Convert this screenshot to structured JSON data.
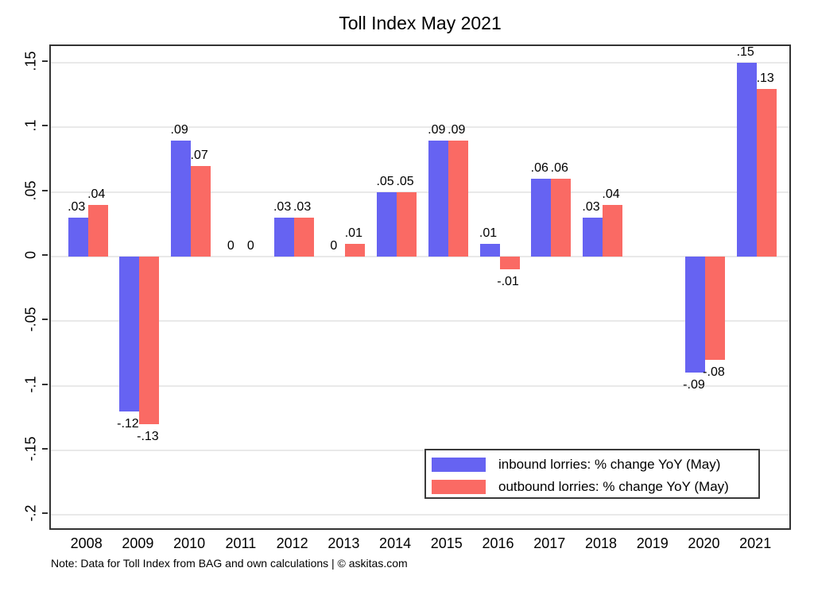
{
  "title": "Toll Index May 2021",
  "note": "Note: Data for Toll Index from BAG and own calculations | © askitas.com",
  "legend": {
    "items": [
      {
        "label": "inbound lorries: % change YoY (May)",
        "color": "#6663f2"
      },
      {
        "label": "outbound lorries: % change YoY (May)",
        "color": "#fa6a64"
      }
    ]
  },
  "chart_data": {
    "type": "bar",
    "title": "Toll Index May 2021",
    "xlabel": "",
    "ylabel": "",
    "categories": [
      "2008",
      "2009",
      "2010",
      "2011",
      "2012",
      "2013",
      "2014",
      "2015",
      "2016",
      "2017",
      "2018",
      "2019",
      "2020",
      "2021"
    ],
    "series": [
      {
        "name": "inbound lorries: % change YoY (May)",
        "color": "#6663f2",
        "values": [
          0.03,
          -0.12,
          0.09,
          0,
          0.03,
          0,
          0.05,
          0.09,
          0.01,
          0.06,
          0.03,
          null,
          -0.09,
          0.15
        ],
        "labels": [
          ".03",
          "-.12",
          ".09",
          "0",
          ".03",
          "0",
          ".05",
          ".09",
          ".01",
          ".06",
          ".03",
          null,
          "-.09",
          ".15"
        ]
      },
      {
        "name": "outbound lorries: % change YoY (May)",
        "color": "#fa6a64",
        "values": [
          0.04,
          -0.13,
          0.07,
          0,
          0.03,
          0.01,
          0.05,
          0.09,
          -0.01,
          0.06,
          0.04,
          null,
          -0.08,
          0.13
        ],
        "labels": [
          ".04",
          "-.13",
          ".07",
          "0",
          ".03",
          ".01",
          ".05",
          ".09",
          "-.01",
          ".06",
          ".04",
          null,
          "-.08",
          ".13"
        ]
      }
    ],
    "y_ticks": [
      {
        "value": 0.15,
        "label": ".15"
      },
      {
        "value": 0.1,
        "label": ".1"
      },
      {
        "value": 0.05,
        "label": ".05"
      },
      {
        "value": 0,
        "label": "0"
      },
      {
        "value": -0.05,
        "label": "-.05"
      },
      {
        "value": -0.1,
        "label": "-.1"
      },
      {
        "value": -0.15,
        "label": "-.15"
      },
      {
        "value": -0.2,
        "label": "-.2"
      }
    ],
    "ylim": [
      -0.2127,
      0.1629
    ],
    "grid": true,
    "legend_position": "bottom-right",
    "note": "Note: Data for Toll Index from BAG and own calculations | © askitas.com"
  }
}
